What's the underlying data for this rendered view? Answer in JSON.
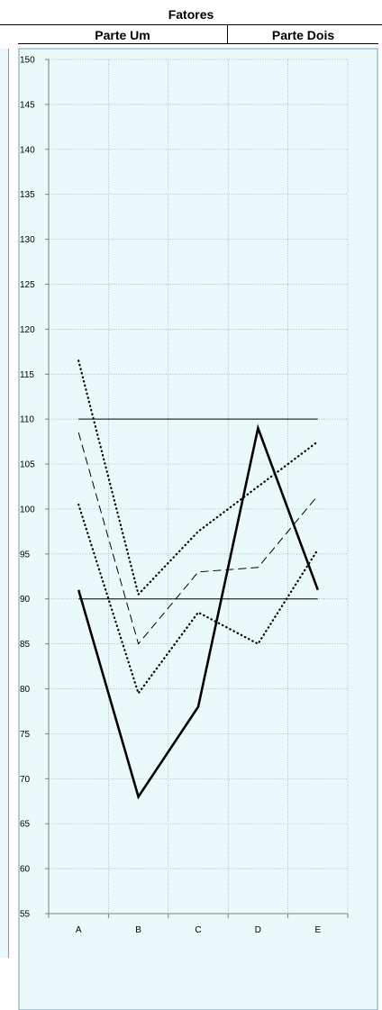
{
  "header": {
    "title": "Fatores",
    "part_one": "Parte Um",
    "part_two": "Parte Dois"
  },
  "chart_data": {
    "type": "line",
    "title": "Fatores",
    "categories": [
      "A",
      "B",
      "C",
      "D",
      "E"
    ],
    "ylim": [
      55,
      150
    ],
    "yticks": [
      55,
      60,
      65,
      70,
      75,
      80,
      85,
      90,
      95,
      100,
      105,
      110,
      115,
      120,
      125,
      130,
      135,
      140,
      145,
      150
    ],
    "grid": true,
    "background": "#eafafb",
    "reference_lines": [
      110,
      90
    ],
    "series": [
      {
        "values": [
          116.5,
          90.5,
          97.5,
          102.5,
          107.5
        ],
        "style": "dotted"
      },
      {
        "values": [
          108.5,
          85,
          93,
          93.5,
          101.5
        ],
        "style": "dashed"
      },
      {
        "values": [
          100.5,
          79.5,
          88.5,
          85,
          95.5
        ],
        "style": "dotted"
      },
      {
        "values": [
          91,
          68,
          78,
          109,
          91
        ],
        "style": "solid-bold"
      }
    ]
  }
}
